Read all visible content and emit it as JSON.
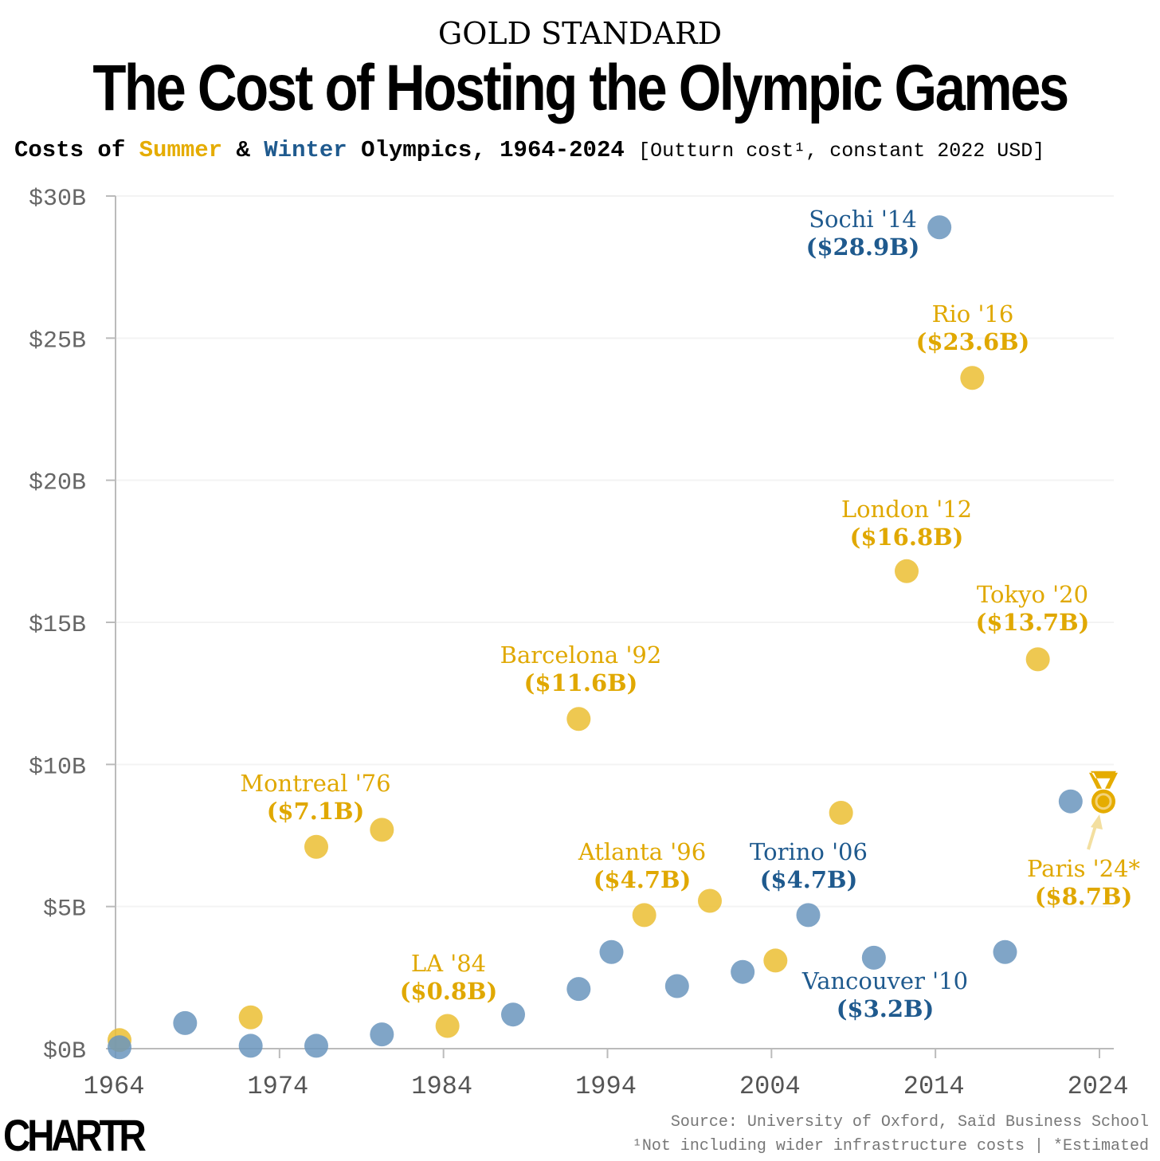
{
  "header": {
    "kicker": "GOLD STANDARD",
    "title": "The Cost of Hosting the Olympic Games",
    "subtitle_pre": "Costs of ",
    "subtitle_summer": "Summer",
    "subtitle_amp": " & ",
    "subtitle_winter": "Winter",
    "subtitle_post": " Olympics, 1964-2024 ",
    "subtitle_unit": "[Outturn cost¹, constant 2022 USD]"
  },
  "footer": {
    "logo": "CHARTR",
    "source": "Source: University of Oxford, Saïd Business School",
    "note": "¹Not including wider infrastructure costs | *Estimated"
  },
  "colors": {
    "summer": "#ebbe33",
    "summer_text": "#e0a800",
    "winter": "#6a95bd",
    "winter_text": "#1f5a8e"
  },
  "chart_data": {
    "type": "scatter",
    "title": "Costs of Summer & Winter Olympics, 1964-2024",
    "xlabel": "",
    "ylabel": "Outturn cost, constant 2022 USD",
    "xlim": [
      1964,
      2024
    ],
    "ylim": [
      0,
      30
    ],
    "x_ticks": [
      "1964",
      "1974",
      "1984",
      "1994",
      "2004",
      "2014",
      "2024"
    ],
    "y_ticks": [
      "$0B",
      "$5B",
      "$10B",
      "$15B",
      "$20B",
      "$25B",
      "$30B"
    ],
    "grid": true,
    "series": [
      {
        "name": "Summer",
        "points": [
          {
            "x": 1964,
            "y": 0.3
          },
          {
            "x": 1972,
            "y": 1.1
          },
          {
            "x": 1976,
            "y": 7.1,
            "label": "Montreal '76",
            "value": "($7.1B)"
          },
          {
            "x": 1980,
            "y": 7.7
          },
          {
            "x": 1984,
            "y": 0.8,
            "label": "LA '84",
            "value": "($0.8B)"
          },
          {
            "x": 1992,
            "y": 11.6,
            "label": "Barcelona '92",
            "value": "($11.6B)"
          },
          {
            "x": 1996,
            "y": 4.7,
            "label": "Atlanta '96",
            "value": "($4.7B)"
          },
          {
            "x": 2000,
            "y": 5.2
          },
          {
            "x": 2004,
            "y": 3.1
          },
          {
            "x": 2008,
            "y": 8.3
          },
          {
            "x": 2012,
            "y": 16.8,
            "label": "London '12",
            "value": "($16.8B)"
          },
          {
            "x": 2016,
            "y": 23.6,
            "label": "Rio '16",
            "value": "($23.6B)"
          },
          {
            "x": 2020,
            "y": 13.7,
            "label": "Tokyo '20",
            "value": "($13.7B)"
          },
          {
            "x": 2024,
            "y": 8.7,
            "label": "Paris '24*",
            "value": "($8.7B)"
          }
        ]
      },
      {
        "name": "Winter",
        "points": [
          {
            "x": 1964,
            "y": 0.05
          },
          {
            "x": 1968,
            "y": 0.9
          },
          {
            "x": 1972,
            "y": 0.1
          },
          {
            "x": 1976,
            "y": 0.1
          },
          {
            "x": 1980,
            "y": 0.5
          },
          {
            "x": 1988,
            "y": 1.2
          },
          {
            "x": 1992,
            "y": 2.1
          },
          {
            "x": 1994,
            "y": 3.4
          },
          {
            "x": 1998,
            "y": 2.2
          },
          {
            "x": 2002,
            "y": 2.7
          },
          {
            "x": 2006,
            "y": 4.7,
            "label": "Torino '06",
            "value": "($4.7B)"
          },
          {
            "x": 2010,
            "y": 3.2,
            "label": "Vancouver '10",
            "value": "($3.2B)"
          },
          {
            "x": 2014,
            "y": 28.9,
            "label": "Sochi '14",
            "value": "($28.9B)"
          },
          {
            "x": 2018,
            "y": 3.4
          },
          {
            "x": 2022,
            "y": 8.7
          }
        ]
      }
    ]
  }
}
